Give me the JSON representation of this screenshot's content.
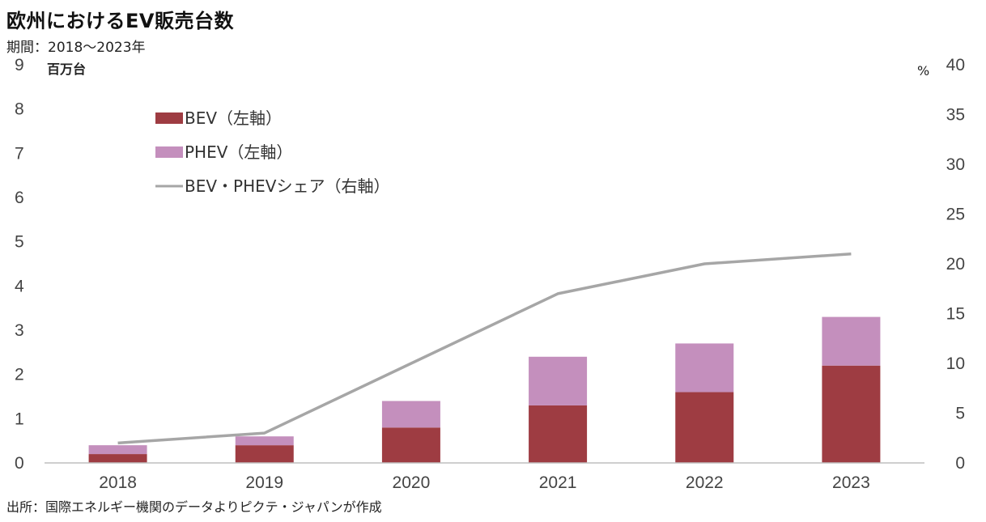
{
  "title": "欧州におけるEV販売台数",
  "subtitle": "期間：2018～2023年",
  "source": "出所：国際エネルギー機関のデータよりピクテ・ジャパンが作成",
  "colors": {
    "bev": "#9e3c42",
    "phev": "#c48fbd",
    "share": "#a6a6a6",
    "axis": "#bfbfbf"
  },
  "chart_data": {
    "type": "bar",
    "categories": [
      "2018",
      "2019",
      "2020",
      "2021",
      "2022",
      "2023"
    ],
    "series": [
      {
        "name": "BEV（左軸）",
        "type": "bar",
        "stack": "ev",
        "axis": "left",
        "values": [
          0.2,
          0.4,
          0.8,
          1.3,
          1.6,
          2.2
        ]
      },
      {
        "name": "PHEV（左軸）",
        "type": "bar",
        "stack": "ev",
        "axis": "left",
        "values": [
          0.2,
          0.2,
          0.6,
          1.1,
          1.1,
          1.1
        ]
      },
      {
        "name": "BEV・PHEVシェア（右軸）",
        "type": "line",
        "axis": "right",
        "values": [
          2,
          3,
          10,
          17,
          20,
          21
        ]
      }
    ],
    "left_axis": {
      "unit": "百万台",
      "min": 0,
      "max": 9,
      "ticks": [
        0,
        1,
        2,
        3,
        4,
        5,
        6,
        7,
        8,
        9
      ]
    },
    "right_axis": {
      "unit": "%",
      "min": 0,
      "max": 40,
      "ticks": [
        0,
        5,
        10,
        15,
        20,
        25,
        30,
        35,
        40
      ]
    },
    "legend_position": "top-left",
    "grid": false
  }
}
